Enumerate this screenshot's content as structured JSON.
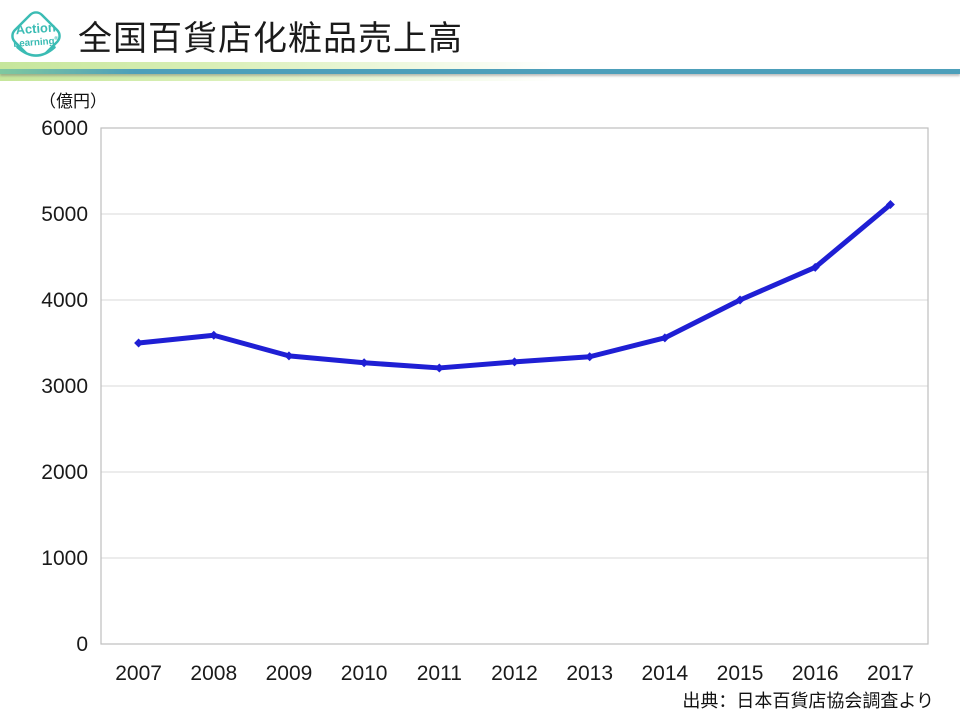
{
  "header": {
    "title": "全国百貨店化粧品売上高",
    "logo": {
      "line1": "Action",
      "line2": "Learning",
      "reg": "®"
    }
  },
  "source_note": "出典：日本百貨店協会調査より",
  "chart_data": {
    "type": "line",
    "title": "全国百貨店化粧品売上高",
    "unit_label": "（億円）",
    "categories": [
      "2007",
      "2008",
      "2009",
      "2010",
      "2011",
      "2012",
      "2013",
      "2014",
      "2015",
      "2016",
      "2017"
    ],
    "series": [
      {
        "name": "全国百貨店化粧品売上高",
        "values": [
          3500,
          3590,
          3350,
          3270,
          3210,
          3280,
          3340,
          3560,
          4000,
          4380,
          5110
        ]
      }
    ],
    "ylim": [
      0,
      6000
    ],
    "ytick_step": 1000,
    "grid": true,
    "legend": "none",
    "colors": {
      "line": "#1f1fd4",
      "gridline": "#d9d9d9",
      "plot_border": "#bfbfbf",
      "logo_teal": "#3bbcb4",
      "rule_teal": "#4d9fba",
      "rule_green": "#c6e69b"
    }
  }
}
